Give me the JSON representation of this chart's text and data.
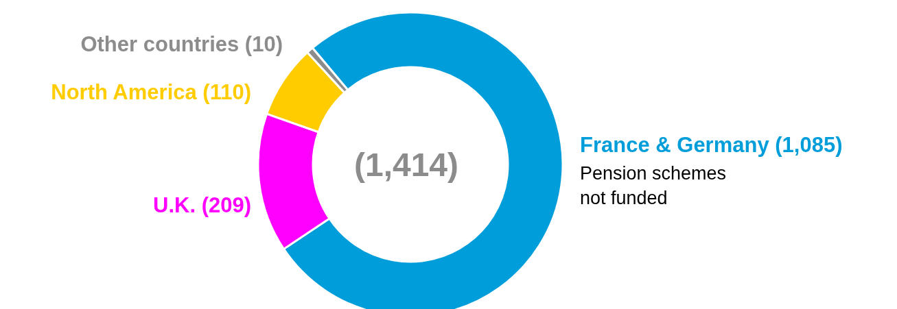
{
  "chart_data": {
    "type": "donut",
    "categories": [
      "France & Germany",
      "U.K.",
      "North America",
      "Other countries"
    ],
    "values": [
      1085,
      209,
      110,
      10
    ],
    "value_labels": [
      "(1,085)",
      "(209)",
      "(110)",
      "(10)"
    ],
    "colors": [
      "#009ddb",
      "#ff00ff",
      "#ffcc00",
      "#8c8c8c"
    ],
    "annotations": [
      "(1,414)",
      "Pension schemes not funded"
    ]
  }
}
